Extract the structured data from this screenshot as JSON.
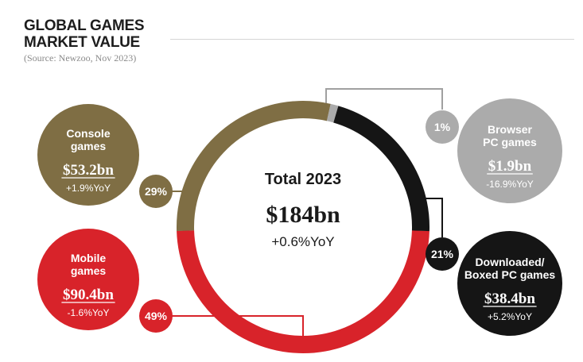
{
  "header": {
    "title_line1": "GLOBAL GAMES",
    "title_line2": "MARKET VALUE",
    "source": "(Source: Newzoo, Nov 2023)"
  },
  "chart_data": {
    "type": "pie",
    "center": {
      "label": "Total 2023",
      "value": "$184bn",
      "change": "+0.6%YoY"
    },
    "segments": [
      {
        "id": "mobile",
        "name_lines": [
          "Mobile",
          "games"
        ],
        "value_label": "$90.4bn",
        "value_bn": 90.4,
        "yoy": "-1.6%YoY",
        "share_label": "49%",
        "share": 49,
        "color": "#d8232a",
        "text_color": "#ffffff"
      },
      {
        "id": "console",
        "name_lines": [
          "Console",
          "games"
        ],
        "value_label": "$53.2bn",
        "value_bn": 53.2,
        "yoy": "+1.9%YoY",
        "share_label": "29%",
        "share": 29,
        "color": "#7f6e44",
        "text_color": "#ffffff"
      },
      {
        "id": "browser",
        "name_lines": [
          "Browser",
          "PC games"
        ],
        "value_label": "$1.9bn",
        "value_bn": 1.9,
        "yoy": "-16.9%YoY",
        "share_label": "1%",
        "share": 1,
        "color": "#ababab",
        "text_color": "#ffffff"
      },
      {
        "id": "downloaded",
        "name_lines": [
          "Downloaded/",
          "Boxed PC games"
        ],
        "value_label": "$38.4bn",
        "value_bn": 38.4,
        "yoy": "+5.2%YoY",
        "share_label": "21%",
        "share": 21,
        "color": "#151515",
        "text_color": "#ffffff"
      }
    ]
  }
}
